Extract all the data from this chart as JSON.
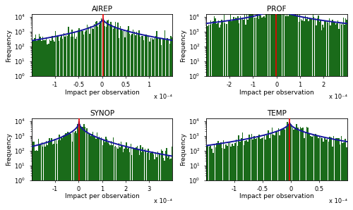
{
  "panels": [
    {
      "title": "AIREP",
      "xlim": [
        -0.00015,
        0.00015
      ],
      "xticks": [
        -0.0001,
        -5e-05,
        0,
        5e-05,
        0.0001
      ],
      "xticklabels": [
        "-1",
        "-0.5",
        "0",
        "0.5",
        "1"
      ],
      "mean": 2e-06,
      "beta": 0.52,
      "scale": 1.4e-05,
      "peak": 8000,
      "n_bins": 120,
      "seed": 42,
      "noise_sigma": 0.55
    },
    {
      "title": "PROF",
      "xlim": [
        -0.0003,
        0.0003
      ],
      "xticks": [
        -0.0002,
        -0.0001,
        0,
        0.0001,
        0.0002
      ],
      "xticklabels": [
        "-2",
        "-1",
        "0",
        "1",
        "2"
      ],
      "mean": -2e-06,
      "beta": 0.4,
      "scale": 1.8e-05,
      "peak": 80000,
      "n_bins": 130,
      "seed": 43,
      "noise_sigma": 0.5
    },
    {
      "title": "SYNOP",
      "xlim": [
        -0.0002,
        0.0004
      ],
      "xticks": [
        -0.0001,
        0,
        0.0001,
        0.0002,
        0.0003
      ],
      "xticklabels": [
        "-1",
        "0",
        "1",
        "2",
        "3"
      ],
      "mean": 2e-06,
      "beta": 0.48,
      "scale": 1.2e-05,
      "peak": 9000,
      "n_bins": 130,
      "seed": 44,
      "noise_sigma": 0.5
    },
    {
      "title": "TEMP",
      "xlim": [
        -0.00015,
        0.0001
      ],
      "xticks": [
        -0.0001,
        -5e-05,
        0,
        5e-05
      ],
      "xticklabels": [
        "-1",
        "-0.5",
        "0",
        "0.5"
      ],
      "mean": -2e-06,
      "beta": 0.5,
      "scale": 1.1e-05,
      "peak": 8500,
      "n_bins": 110,
      "seed": 45,
      "noise_sigma": 0.5
    }
  ],
  "ylim_min": 1.0,
  "ylim_max": 10000.0,
  "hist_color": "#1a6b1a",
  "fit_color": "#1515a0",
  "mean_color": "#ee0000",
  "mean_lw": 1.2,
  "fit_lw": 1.4,
  "ylabel": "Frequency",
  "xlabel": "Impact per observation",
  "scale_label": "x 10⁻⁴",
  "title_fontsize": 7.5,
  "label_fontsize": 6.5,
  "tick_fontsize": 6.0,
  "scale_fontsize": 6.0
}
